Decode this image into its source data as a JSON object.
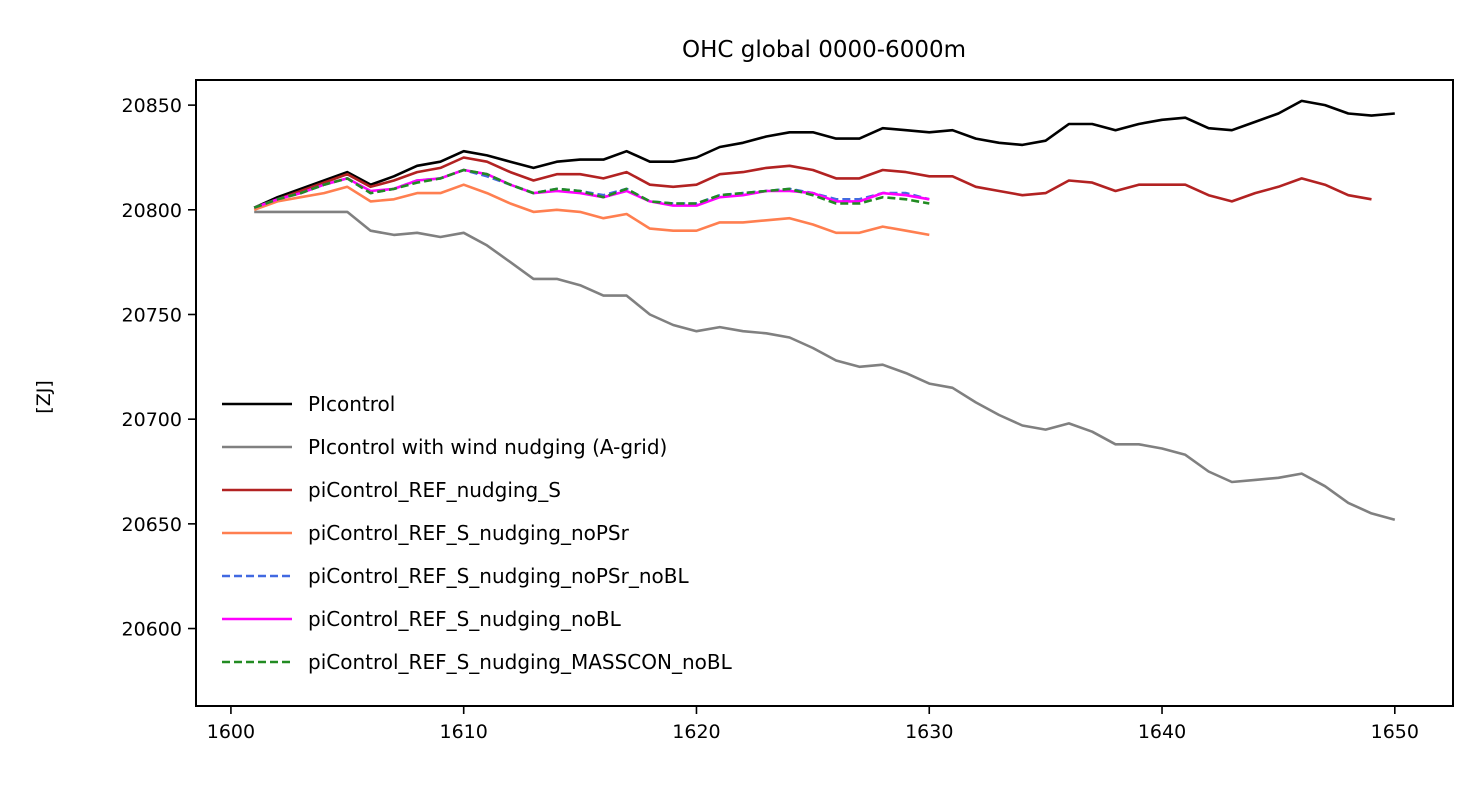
{
  "chart_data": {
    "type": "line",
    "title": "OHC global 0000-6000m",
    "xlabel": "",
    "ylabel": "[ZJ]",
    "xlim": [
      1598.5,
      1652.5
    ],
    "ylim": [
      20563,
      20862
    ],
    "xticks": [
      1600,
      1610,
      1620,
      1630,
      1640,
      1650
    ],
    "yticks": [
      20600,
      20650,
      20700,
      20750,
      20800,
      20850
    ],
    "grid": false,
    "legend_position": "lower-left",
    "series": [
      {
        "name": "PIcontrol",
        "color": "#000000",
        "dashed": false,
        "x": [
          1601,
          1602,
          1603,
          1604,
          1605,
          1606,
          1607,
          1608,
          1609,
          1610,
          1611,
          1612,
          1613,
          1614,
          1615,
          1616,
          1617,
          1618,
          1619,
          1620,
          1621,
          1622,
          1623,
          1624,
          1625,
          1626,
          1627,
          1628,
          1629,
          1630,
          1631,
          1632,
          1633,
          1634,
          1635,
          1636,
          1637,
          1638,
          1639,
          1640,
          1641,
          1642,
          1643,
          1644,
          1645,
          1646,
          1647,
          1648,
          1649,
          1650
        ],
        "y": [
          20801,
          20806,
          20810,
          20814,
          20818,
          20812,
          20816,
          20821,
          20823,
          20828,
          20826,
          20823,
          20820,
          20823,
          20824,
          20824,
          20828,
          20823,
          20823,
          20825,
          20830,
          20832,
          20835,
          20837,
          20837,
          20834,
          20834,
          20839,
          20838,
          20837,
          20838,
          20834,
          20832,
          20831,
          20833,
          20841,
          20841,
          20838,
          20841,
          20843,
          20844,
          20839,
          20838,
          20842,
          20846,
          20852,
          20850,
          20846,
          20845,
          20846
        ]
      },
      {
        "name": "PIcontrol with wind nudging (A-grid)",
        "color": "#808080",
        "dashed": false,
        "x": [
          1601,
          1602,
          1603,
          1604,
          1605,
          1606,
          1607,
          1608,
          1609,
          1610,
          1611,
          1612,
          1613,
          1614,
          1615,
          1616,
          1617,
          1618,
          1619,
          1620,
          1621,
          1622,
          1623,
          1624,
          1625,
          1626,
          1627,
          1628,
          1629,
          1630,
          1631,
          1632,
          1633,
          1634,
          1635,
          1636,
          1637,
          1638,
          1639,
          1640,
          1641,
          1642,
          1643,
          1644,
          1645,
          1646,
          1647,
          1648,
          1649,
          1650
        ],
        "y": [
          20799,
          20799,
          20799,
          20799,
          20799,
          20790,
          20788,
          20789,
          20787,
          20789,
          20783,
          20775,
          20767,
          20767,
          20764,
          20759,
          20759,
          20750,
          20745,
          20742,
          20744,
          20742,
          20741,
          20739,
          20734,
          20728,
          20725,
          20726,
          20722,
          20717,
          20715,
          20708,
          20702,
          20697,
          20695,
          20698,
          20694,
          20688,
          20688,
          20686,
          20683,
          20675,
          20670,
          20671,
          20672,
          20674,
          20668,
          20660,
          20655,
          20652
        ]
      },
      {
        "name": "piControl_REF_nudging_S",
        "color": "#b22222",
        "dashed": false,
        "x": [
          1601,
          1602,
          1603,
          1604,
          1605,
          1606,
          1607,
          1608,
          1609,
          1610,
          1611,
          1612,
          1613,
          1614,
          1615,
          1616,
          1617,
          1618,
          1619,
          1620,
          1621,
          1622,
          1623,
          1624,
          1625,
          1626,
          1627,
          1628,
          1629,
          1630,
          1631,
          1632,
          1633,
          1634,
          1635,
          1636,
          1637,
          1638,
          1639,
          1640,
          1641,
          1642,
          1643,
          1644,
          1645,
          1646,
          1647,
          1648,
          1649
        ],
        "y": [
          20801,
          20805,
          20809,
          20813,
          20817,
          20811,
          20814,
          20818,
          20820,
          20825,
          20823,
          20818,
          20814,
          20817,
          20817,
          20815,
          20818,
          20812,
          20811,
          20812,
          20817,
          20818,
          20820,
          20821,
          20819,
          20815,
          20815,
          20819,
          20818,
          20816,
          20816,
          20811,
          20809,
          20807,
          20808,
          20814,
          20813,
          20809,
          20812,
          20812,
          20812,
          20807,
          20804,
          20808,
          20811,
          20815,
          20812,
          20807,
          20805
        ]
      },
      {
        "name": "piControl_REF_S_nudging_noPSr",
        "color": "#ff7f50",
        "dashed": false,
        "x": [
          1601,
          1602,
          1603,
          1604,
          1605,
          1606,
          1607,
          1608,
          1609,
          1610,
          1611,
          1612,
          1613,
          1614,
          1615,
          1616,
          1617,
          1618,
          1619,
          1620,
          1621,
          1622,
          1623,
          1624,
          1625,
          1626,
          1627,
          1628,
          1629,
          1630
        ],
        "y": [
          20800,
          20804,
          20806,
          20808,
          20811,
          20804,
          20805,
          20808,
          20808,
          20812,
          20808,
          20803,
          20799,
          20800,
          20799,
          20796,
          20798,
          20791,
          20790,
          20790,
          20794,
          20794,
          20795,
          20796,
          20793,
          20789,
          20789,
          20792,
          20790,
          20788
        ]
      },
      {
        "name": "piControl_REF_S_nudging_noPSr_noBL",
        "color": "#4169e1",
        "dashed": true,
        "x": [
          1601,
          1602,
          1603,
          1604,
          1605,
          1606,
          1607,
          1608,
          1609,
          1610,
          1611,
          1612,
          1613,
          1614,
          1615,
          1616,
          1617,
          1618,
          1619,
          1620,
          1621,
          1622,
          1623,
          1624,
          1625,
          1626,
          1627,
          1628,
          1629,
          1630
        ],
        "y": [
          20801,
          20805,
          20808,
          20812,
          20815,
          20808,
          20810,
          20814,
          20815,
          20819,
          20816,
          20812,
          20808,
          20810,
          20809,
          20807,
          20810,
          20804,
          20803,
          20803,
          20807,
          20808,
          20809,
          20810,
          20808,
          20805,
          20805,
          20808,
          20808,
          20805
        ]
      },
      {
        "name": "piControl_REF_S_nudging_noBL",
        "color": "#ff00ff",
        "dashed": false,
        "x": [
          1601,
          1602,
          1603,
          1604,
          1605,
          1606,
          1607,
          1608,
          1609,
          1610,
          1611,
          1612,
          1613,
          1614,
          1615,
          1616,
          1617,
          1618,
          1619,
          1620,
          1621,
          1622,
          1623,
          1624,
          1625,
          1626,
          1627,
          1628,
          1629,
          1630
        ],
        "y": [
          20801,
          20805,
          20808,
          20812,
          20815,
          20809,
          20810,
          20814,
          20815,
          20819,
          20817,
          20812,
          20808,
          20809,
          20808,
          20806,
          20809,
          20804,
          20802,
          20802,
          20806,
          20807,
          20809,
          20809,
          20808,
          20804,
          20804,
          20808,
          20807,
          20805
        ]
      },
      {
        "name": "piControl_REF_S_nudging_MASSCON_noBL",
        "color": "#228b22",
        "dashed": true,
        "x": [
          1601,
          1602,
          1603,
          1604,
          1605,
          1606,
          1607,
          1608,
          1609,
          1610,
          1611,
          1612,
          1613,
          1614,
          1615,
          1616,
          1617,
          1618,
          1619,
          1620,
          1621,
          1622,
          1623,
          1624,
          1625,
          1626,
          1627,
          1628,
          1629,
          1630
        ],
        "y": [
          20801,
          20805,
          20808,
          20812,
          20815,
          20808,
          20810,
          20813,
          20815,
          20819,
          20817,
          20812,
          20808,
          20810,
          20809,
          20806,
          20810,
          20804,
          20803,
          20803,
          20807,
          20808,
          20809,
          20810,
          20807,
          20803,
          20803,
          20806,
          20805,
          20803
        ]
      }
    ]
  }
}
